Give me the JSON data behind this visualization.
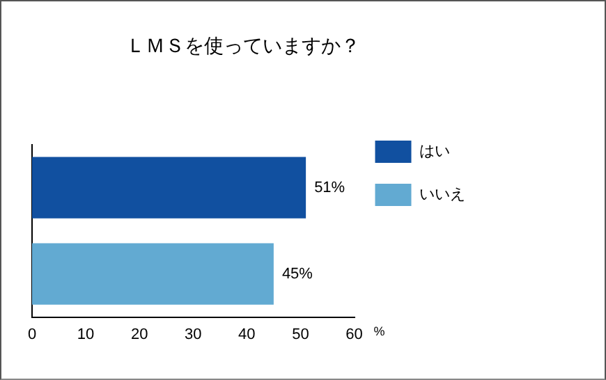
{
  "chart_data": {
    "type": "bar",
    "orientation": "horizontal",
    "title": "ＬＭＳを使っていますか？",
    "xlabel": "%",
    "categories": [
      null,
      null
    ],
    "series": [
      {
        "name": "はい",
        "color": "#1150a0",
        "values": [
          51,
          null
        ],
        "value_labels": [
          "51%",
          null
        ]
      },
      {
        "name": "いいえ",
        "color": "#62aad2",
        "values": [
          null,
          45
        ],
        "value_labels": [
          null,
          "45%"
        ]
      }
    ],
    "xlim": [
      0,
      60
    ],
    "xticks": [
      0,
      10,
      20,
      30,
      40,
      50,
      60
    ],
    "tick_labels": "x",
    "legend": "right"
  }
}
